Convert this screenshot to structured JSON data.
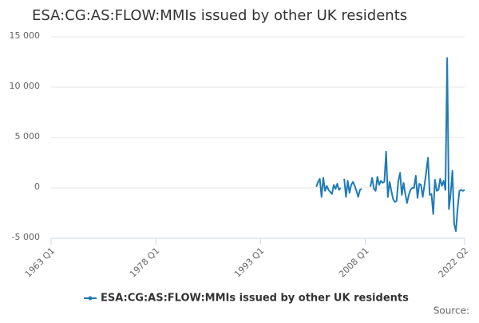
{
  "chart_data": {
    "type": "line",
    "title": "ESA:CG:AS:FLOW:MMIs issued by other UK residents",
    "source": "Source:",
    "x": [
      2001,
      2001.25,
      2001.5,
      2001.75,
      2002,
      2002.25,
      2002.5,
      2002.75,
      2003,
      2003.25,
      2003.5,
      2003.75,
      2004,
      2004.25,
      2004.5,
      2004.75,
      2005,
      2005.25,
      2005.5,
      2005.75,
      2006,
      2006.25,
      2006.5,
      2006.75,
      2007,
      2007.25,
      2007.5,
      2007.75,
      2008,
      2008.25,
      2008.5,
      2008.75,
      2009,
      2009.25,
      2009.5,
      2009.75,
      2010,
      2010.25,
      2010.5,
      2010.75,
      2011,
      2011.25,
      2011.5,
      2011.75,
      2012,
      2012.25,
      2012.5,
      2012.75,
      2013,
      2013.25,
      2013.5,
      2013.75,
      2014,
      2014.25,
      2014.5,
      2014.75,
      2015,
      2015.25,
      2015.5,
      2015.75,
      2016,
      2016.25,
      2016.5,
      2016.75,
      2017,
      2017.25,
      2017.5,
      2017.75,
      2018,
      2018.25,
      2018.5,
      2018.75,
      2019,
      2019.25,
      2019.5,
      2019.75,
      2020,
      2020.25,
      2020.5,
      2020.75,
      2021,
      2021.25,
      2021.5,
      2021.75,
      2022,
      2022.25
    ],
    "series": [
      {
        "name": "ESA:CG:AS:FLOW:MMIs issued by other UK residents",
        "color": "#1f7bb6",
        "values": [
          100,
          600,
          900,
          -900,
          1000,
          -300,
          200,
          -200,
          -400,
          -600,
          300,
          -100,
          400,
          -200,
          0,
          null,
          900,
          -900,
          700,
          -500,
          300,
          600,
          200,
          -300,
          -900,
          -200,
          -100,
          null,
          null,
          null,
          null,
          100,
          1000,
          -100,
          -300,
          1100,
          300,
          700,
          500,
          600,
          3600,
          -900,
          600,
          -300,
          -1100,
          -1400,
          -1300,
          700,
          1500,
          -700,
          500,
          -600,
          -1500,
          -700,
          -200,
          0,
          0,
          1200,
          -1000,
          400,
          300,
          -900,
          300,
          1600,
          3000,
          -700,
          -600,
          -2600,
          800,
          -300,
          -200,
          900,
          200,
          700,
          -200,
          12900,
          -2100,
          -600,
          1700,
          -3600,
          -4300,
          -2000,
          -300,
          -200,
          -300,
          -200
        ]
      }
    ],
    "xlim": [
      1963,
      2022.25
    ],
    "xticks": [
      {
        "value": 1963,
        "label": "1963 Q1"
      },
      {
        "value": 1978,
        "label": "1978 Q1"
      },
      {
        "value": 1993,
        "label": "1993 Q1"
      },
      {
        "value": 2008,
        "label": "2008 Q1"
      },
      {
        "value": 2022.25,
        "label": "2022 Q2"
      }
    ],
    "ylim": [
      -5000,
      15000
    ],
    "yticks": [
      {
        "value": -5000,
        "label": "-5 000"
      },
      0,
      {
        "value": 5000,
        "label": "5 000"
      },
      {
        "value": 10000,
        "label": "10 000"
      },
      {
        "value": 15000,
        "label": "15 000"
      }
    ],
    "grid": true,
    "legend": "bottom"
  }
}
